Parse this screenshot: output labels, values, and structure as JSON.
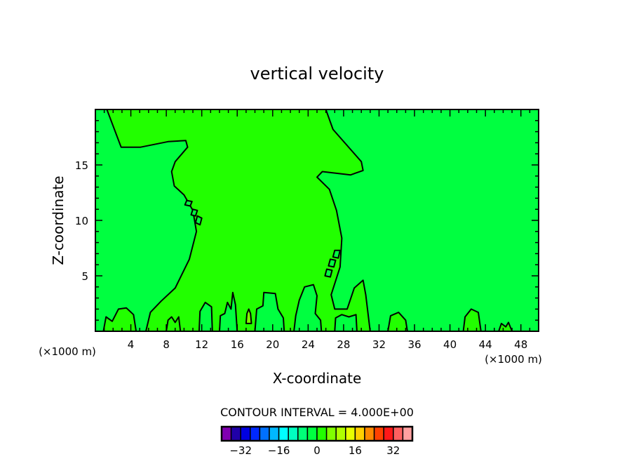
{
  "chart_data": {
    "type": "heatmap",
    "subtype": "filled-contour",
    "title": "vertical velocity",
    "xlabel": "X-coordinate",
    "ylabel": "Z-coordinate",
    "x_unit_left": "(×1000 m)",
    "x_unit_right": "(×1000 m)",
    "xlim": [
      0,
      50
    ],
    "ylim": [
      0,
      20
    ],
    "xticks": [
      4,
      8,
      12,
      16,
      20,
      24,
      28,
      32,
      36,
      40,
      44,
      48
    ],
    "yticks": [
      5,
      10,
      15
    ],
    "contour_interval_label": "CONTOUR INTERVAL = 4.000E+00",
    "colorbar": {
      "levels_min": -40,
      "levels_max": 40,
      "step": 4,
      "labels": [
        "-32",
        "-16",
        "0",
        "16",
        "32"
      ],
      "label_values": [
        -32,
        -16,
        0,
        16,
        32
      ],
      "colors": [
        "#8000b0",
        "#2000a8",
        "#0000e0",
        "#0028ff",
        "#0070ff",
        "#00b8ff",
        "#00ffff",
        "#00ffc0",
        "#00ff78",
        "#00ff40",
        "#22ff00",
        "#80ff00",
        "#b0ff00",
        "#e8ff00",
        "#ffd000",
        "#ff8800",
        "#ff4000",
        "#ff1818",
        "#ff6060",
        "#ffa0a0"
      ]
    },
    "background_value_band": [
      -4,
      0
    ],
    "regions": [
      {
        "name": "plume",
        "band": [
          0,
          4
        ],
        "points": [
          [
            1.3,
            20
          ],
          [
            2.9,
            16.6
          ],
          [
            5.1,
            16.6
          ],
          [
            8.2,
            17.1
          ],
          [
            10.2,
            17.2
          ],
          [
            10.4,
            16.6
          ],
          [
            9.0,
            15.3
          ],
          [
            8.6,
            14.4
          ],
          [
            8.9,
            13.1
          ],
          [
            10.0,
            12.3
          ],
          [
            11.0,
            10.9
          ],
          [
            11.4,
            9.0
          ],
          [
            10.6,
            6.5
          ],
          [
            9.0,
            3.9
          ],
          [
            7.4,
            2.7
          ],
          [
            6.2,
            1.7
          ],
          [
            5.7,
            0
          ],
          [
            31.0,
            0
          ],
          [
            30.5,
            3.3
          ],
          [
            30.2,
            4.6
          ],
          [
            29.2,
            3.9
          ],
          [
            28.4,
            2.0
          ],
          [
            27.0,
            2.0
          ],
          [
            26.6,
            3.3
          ],
          [
            27.6,
            5.8
          ],
          [
            27.8,
            8.4
          ],
          [
            27.2,
            10.9
          ],
          [
            26.4,
            12.8
          ],
          [
            25.0,
            13.9
          ],
          [
            25.6,
            14.4
          ],
          [
            28.8,
            14.1
          ],
          [
            30.2,
            14.5
          ],
          [
            30.0,
            15.3
          ],
          [
            26.8,
            18.2
          ],
          [
            26.0,
            20
          ]
        ]
      },
      {
        "name": "bump",
        "band": [
          -4,
          0
        ],
        "points": [
          [
            11.7,
            0
          ],
          [
            11.8,
            1.8
          ],
          [
            12.4,
            2.6
          ],
          [
            13.1,
            2.2
          ],
          [
            13.2,
            0
          ]
        ]
      },
      {
        "name": "bump",
        "band": [
          -4,
          0
        ],
        "points": [
          [
            14.0,
            0
          ],
          [
            14.1,
            1.4
          ],
          [
            14.6,
            1.6
          ],
          [
            14.9,
            2.6
          ],
          [
            15.3,
            2.0
          ],
          [
            15.5,
            3.5
          ],
          [
            15.8,
            2.4
          ],
          [
            16.0,
            0
          ]
        ]
      },
      {
        "name": "bump",
        "band": [
          -4,
          0
        ],
        "points": [
          [
            18.0,
            0
          ],
          [
            18.2,
            2.0
          ],
          [
            18.9,
            2.3
          ],
          [
            19.0,
            3.5
          ],
          [
            20.3,
            3.4
          ],
          [
            20.6,
            2.0
          ],
          [
            21.2,
            1.2
          ],
          [
            21.3,
            0
          ]
        ]
      },
      {
        "name": "bump",
        "band": [
          -4,
          0
        ],
        "points": [
          [
            22.4,
            0
          ],
          [
            22.6,
            1.4
          ],
          [
            23.0,
            2.8
          ],
          [
            23.6,
            4.0
          ],
          [
            24.6,
            4.2
          ],
          [
            25.0,
            3.2
          ],
          [
            24.8,
            1.6
          ],
          [
            25.4,
            1.0
          ],
          [
            25.5,
            0
          ]
        ]
      },
      {
        "name": "bump",
        "band": [
          -4,
          0
        ],
        "points": [
          [
            27.0,
            0
          ],
          [
            27.1,
            1.2
          ],
          [
            27.8,
            1.5
          ],
          [
            28.6,
            1.3
          ],
          [
            29.4,
            1.5
          ],
          [
            29.5,
            0
          ]
        ]
      },
      {
        "name": "bump",
        "band": [
          0,
          4
        ],
        "points": [
          [
            0.9,
            0
          ],
          [
            1.2,
            1.3
          ],
          [
            1.9,
            0.9
          ],
          [
            2.6,
            2.0
          ],
          [
            3.5,
            2.1
          ],
          [
            4.3,
            1.5
          ],
          [
            4.6,
            0
          ]
        ]
      },
      {
        "name": "bump",
        "band": [
          0,
          4
        ],
        "points": [
          [
            8.0,
            0
          ],
          [
            8.2,
            1.0
          ],
          [
            8.6,
            1.3
          ],
          [
            9.0,
            0.8
          ],
          [
            9.4,
            1.3
          ],
          [
            9.6,
            0
          ]
        ]
      },
      {
        "name": "bump",
        "band": [
          0,
          4
        ],
        "points": [
          [
            33.0,
            0
          ],
          [
            33.3,
            1.4
          ],
          [
            34.2,
            1.7
          ],
          [
            35.0,
            1.0
          ],
          [
            35.2,
            0
          ]
        ]
      },
      {
        "name": "bump",
        "band": [
          0,
          4
        ],
        "points": [
          [
            41.5,
            0
          ],
          [
            41.7,
            1.3
          ],
          [
            42.4,
            2.0
          ],
          [
            43.2,
            1.7
          ],
          [
            43.5,
            0
          ]
        ]
      },
      {
        "name": "bump",
        "band": [
          0,
          4
        ],
        "points": [
          [
            45.5,
            0
          ],
          [
            45.8,
            0.7
          ],
          [
            46.3,
            0.4
          ],
          [
            46.6,
            0.8
          ],
          [
            47.0,
            0
          ]
        ]
      },
      {
        "name": "blob",
        "band": [
          4,
          8
        ],
        "points": [
          [
            17.0,
            0.7
          ],
          [
            17.1,
            1.6
          ],
          [
            17.3,
            2.0
          ],
          [
            17.5,
            1.6
          ],
          [
            17.6,
            0.7
          ]
        ]
      },
      {
        "name": "oval",
        "band": [
          -4,
          0
        ],
        "points": [
          [
            10.3,
            11.8
          ],
          [
            10.9,
            11.7
          ],
          [
            10.7,
            11.3
          ],
          [
            10.1,
            11.4
          ]
        ]
      },
      {
        "name": "oval",
        "band": [
          -4,
          0
        ],
        "points": [
          [
            11.0,
            11.0
          ],
          [
            11.5,
            10.9
          ],
          [
            11.3,
            10.4
          ],
          [
            10.8,
            10.5
          ]
        ]
      },
      {
        "name": "oval",
        "band": [
          -4,
          0
        ],
        "points": [
          [
            11.5,
            10.4
          ],
          [
            12.0,
            10.2
          ],
          [
            11.8,
            9.6
          ],
          [
            11.3,
            9.8
          ]
        ]
      },
      {
        "name": "oval",
        "band": [
          -4,
          0
        ],
        "points": [
          [
            27.0,
            7.3
          ],
          [
            27.6,
            7.3
          ],
          [
            27.4,
            6.6
          ],
          [
            26.8,
            6.7
          ]
        ]
      },
      {
        "name": "oval",
        "band": [
          -4,
          0
        ],
        "points": [
          [
            26.5,
            6.5
          ],
          [
            27.1,
            6.4
          ],
          [
            26.9,
            5.8
          ],
          [
            26.3,
            5.9
          ]
        ]
      },
      {
        "name": "oval",
        "band": [
          -4,
          0
        ],
        "points": [
          [
            26.1,
            5.6
          ],
          [
            26.7,
            5.5
          ],
          [
            26.5,
            4.9
          ],
          [
            25.9,
            5.0
          ]
        ]
      }
    ]
  }
}
